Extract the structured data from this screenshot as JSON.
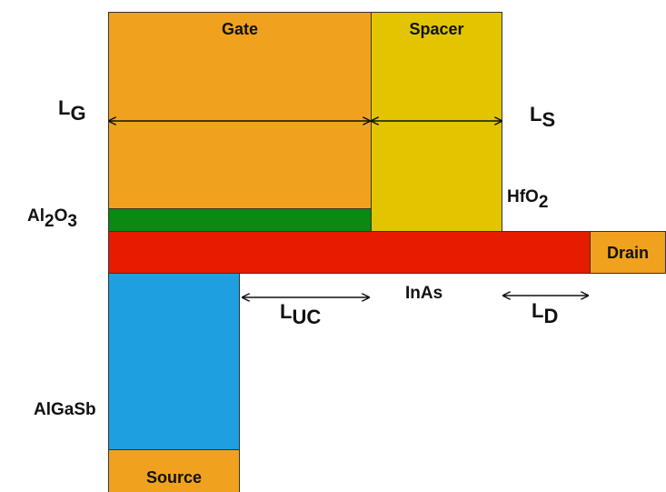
{
  "colors": {
    "gate": "#F0A21E",
    "spacer": "#E2C500",
    "oxide": "#0A8A12",
    "channel": "#E61B00",
    "source_region": "#1E9FE0",
    "contact": "#F0A21E"
  },
  "blocks": {
    "gate": "Gate",
    "spacer": "Spacer",
    "drain": "Drain",
    "source": "Source"
  },
  "labels": {
    "lg_main": "L",
    "lg_sub": "G",
    "ls_main": "L",
    "ls_sub": "S",
    "hfo2_main": "HfO",
    "hfo2_sub": "2",
    "al2o3_a": "Al",
    "al2o3_sub1": "2",
    "al2o3_b": "O",
    "al2o3_sub2": "3",
    "luc_main": "L",
    "luc_sub": "UC",
    "inas": "InAs",
    "ld_main": "L",
    "ld_sub": "D",
    "algasb": "AlGaSb"
  }
}
